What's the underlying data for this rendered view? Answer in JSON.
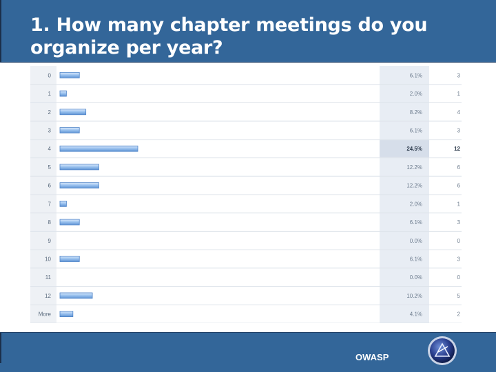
{
  "slide": {
    "title": "1. How many chapter meetings do you organize per year?",
    "footer_brand": "OWASP"
  },
  "colors": {
    "header_bg": "#336699",
    "bar_fill": "#8fb8e8",
    "row_highlight": "#e3e9f1"
  },
  "chart_data": {
    "type": "bar",
    "orientation": "horizontal",
    "categories": [
      "0",
      "1",
      "2",
      "3",
      "4",
      "5",
      "6",
      "7",
      "8",
      "9",
      "10",
      "11",
      "12",
      "More"
    ],
    "percents": [
      "6.1%",
      "2.0%",
      "8.2%",
      "6.1%",
      "24.5%",
      "12.2%",
      "12.2%",
      "2.0%",
      "6.1%",
      "0.0%",
      "6.1%",
      "0.0%",
      "10.2%",
      "4.1%"
    ],
    "values": [
      3,
      1,
      4,
      3,
      12,
      6,
      6,
      1,
      3,
      0,
      3,
      0,
      5,
      2
    ],
    "highlight_index": 4
  }
}
